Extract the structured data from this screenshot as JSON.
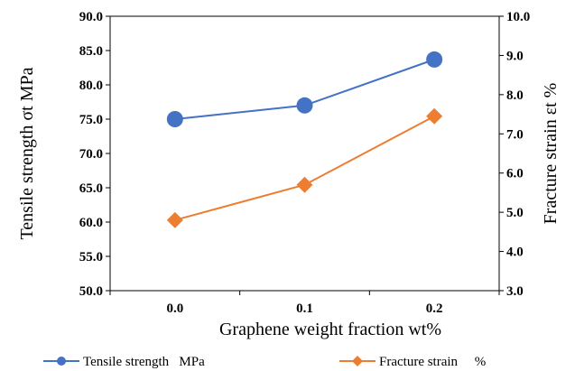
{
  "chart_data": {
    "type": "line",
    "x": [
      "0.0",
      "0.1",
      "0.2"
    ],
    "xlabel": "Graphene weight fraction wt%",
    "ylabel_left": "Tensile strength σt MPa",
    "ylabel_right": "Fracture strain εt %",
    "y_left_lim": [
      50,
      90
    ],
    "y_left_ticks": [
      "50.0",
      "55.0",
      "60.0",
      "65.0",
      "70.0",
      "75.0",
      "80.0",
      "85.0",
      "90.0"
    ],
    "y_right_lim": [
      3,
      10
    ],
    "y_right_ticks": [
      "3.0",
      "4.0",
      "5.0",
      "6.0",
      "7.0",
      "8.0",
      "9.0",
      "10.0"
    ],
    "series": [
      {
        "name": "Tensile strength MPa",
        "legend_label": "Tensile strength   MPa",
        "axis": "left",
        "values": [
          75.0,
          77.0,
          83.7
        ],
        "color": "#4472C4",
        "marker": "circle"
      },
      {
        "name": "Fracture strain %",
        "legend_label": "Fracture strain     %",
        "axis": "right",
        "values": [
          4.8,
          5.7,
          7.45
        ],
        "color": "#ED7D31",
        "marker": "diamond"
      }
    ],
    "grid": false,
    "legend": "bottom"
  }
}
